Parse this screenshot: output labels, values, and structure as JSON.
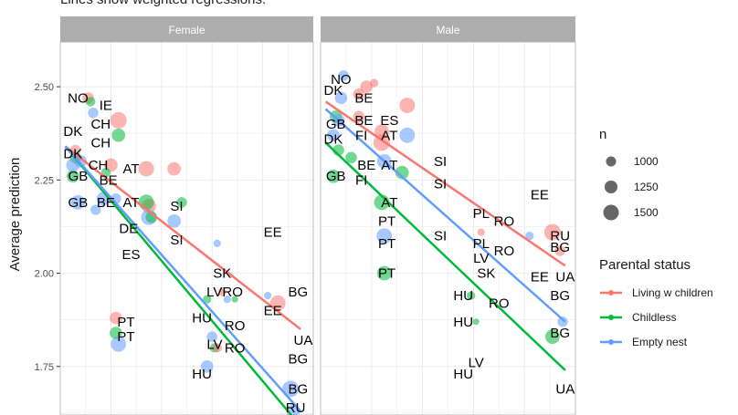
{
  "subtitle": "Lines show weighted regressions.",
  "ylabel": "Average prediction",
  "colors": {
    "Living w children": "#F8766D",
    "Childless": "#00BA38",
    "Empty nest": "#619CFF",
    "strip": "#adadad",
    "grid": "#ebebeb"
  },
  "legend": {
    "size_title": "n",
    "size_entries": [
      "1000",
      "1250",
      "1500"
    ],
    "color_title": "Parental status",
    "color_entries": [
      "Living w children",
      "Childless",
      "Empty nest"
    ]
  },
  "chart_data": {
    "type": "scatter",
    "ylim": [
      1.62,
      2.62
    ],
    "yticks": [
      1.75,
      2.0,
      2.25,
      2.5
    ],
    "ytick_labels": [
      "1.75",
      "2.00",
      "2.25",
      "2.50"
    ],
    "xlim": [
      0,
      10
    ],
    "grid": true,
    "facets": [
      {
        "name": "Female",
        "points": [
          {
            "x": 1.1,
            "y": 2.47,
            "g": 0,
            "s": 1100
          },
          {
            "x": 1.2,
            "y": 2.46,
            "g": 1,
            "s": 900
          },
          {
            "x": 1.3,
            "y": 2.43,
            "g": 2,
            "s": 1000
          },
          {
            "x": 2.3,
            "y": 2.41,
            "g": 0,
            "s": 1600
          },
          {
            "x": 2.3,
            "y": 2.37,
            "g": 1,
            "s": 1300
          },
          {
            "x": 0.6,
            "y": 2.33,
            "g": 0,
            "s": 1000
          },
          {
            "x": 0.6,
            "y": 2.31,
            "g": 1,
            "s": 1100
          },
          {
            "x": 0.8,
            "y": 2.3,
            "g": 2,
            "s": 1200
          },
          {
            "x": 2.0,
            "y": 2.29,
            "g": 0,
            "s": 1300
          },
          {
            "x": 1.8,
            "y": 2.27,
            "g": 1,
            "s": 900
          },
          {
            "x": 0.5,
            "y": 2.26,
            "g": 1,
            "s": 1200
          },
          {
            "x": 0.5,
            "y": 2.29,
            "g": 2,
            "s": 1300
          },
          {
            "x": 0.7,
            "y": 2.19,
            "g": 2,
            "s": 1400
          },
          {
            "x": 1.7,
            "y": 2.2,
            "g": 2,
            "s": 1300
          },
          {
            "x": 2.2,
            "y": 2.2,
            "g": 2,
            "s": 1000
          },
          {
            "x": 1.4,
            "y": 2.17,
            "g": 2,
            "s": 1000
          },
          {
            "x": 3.4,
            "y": 2.28,
            "g": 0,
            "s": 1500
          },
          {
            "x": 3.5,
            "y": 2.18,
            "g": 0,
            "s": 1400
          },
          {
            "x": 3.4,
            "y": 2.19,
            "g": 1,
            "s": 1500
          },
          {
            "x": 3.5,
            "y": 2.15,
            "g": 2,
            "s": 1500
          },
          {
            "x": 3.6,
            "y": 2.15,
            "g": 1,
            "s": 1100
          },
          {
            "x": 4.5,
            "y": 2.28,
            "g": 0,
            "s": 1300
          },
          {
            "x": 4.8,
            "y": 2.19,
            "g": 1,
            "s": 1000
          },
          {
            "x": 4.5,
            "y": 2.14,
            "g": 2,
            "s": 1300
          },
          {
            "x": 6.2,
            "y": 2.08,
            "g": 2,
            "s": 700
          },
          {
            "x": 8.2,
            "y": 1.94,
            "g": 2,
            "s": 700
          },
          {
            "x": 8.6,
            "y": 1.92,
            "g": 0,
            "s": 1500
          },
          {
            "x": 6.4,
            "y": 1.95,
            "g": 0,
            "s": 800
          },
          {
            "x": 6.6,
            "y": 1.93,
            "g": 2,
            "s": 700
          },
          {
            "x": 6.9,
            "y": 1.93,
            "g": 1,
            "s": 600
          },
          {
            "x": 5.8,
            "y": 1.93,
            "g": 1,
            "s": 800
          },
          {
            "x": 6.1,
            "y": 1.8,
            "g": 1,
            "s": 900
          },
          {
            "x": 6.0,
            "y": 1.83,
            "g": 2,
            "s": 1000
          },
          {
            "x": 5.8,
            "y": 1.75,
            "g": 2,
            "s": 1200
          },
          {
            "x": 6.2,
            "y": 1.8,
            "g": 0,
            "s": 900
          },
          {
            "x": 2.2,
            "y": 1.88,
            "g": 0,
            "s": 1200
          },
          {
            "x": 2.2,
            "y": 1.84,
            "g": 1,
            "s": 1200
          },
          {
            "x": 2.3,
            "y": 1.81,
            "g": 2,
            "s": 1500
          },
          {
            "x": 9.1,
            "y": 1.69,
            "g": 2,
            "s": 1600
          },
          {
            "x": 9.2,
            "y": 1.63,
            "g": 2,
            "s": 1300
          }
        ],
        "labels": [
          {
            "t": "NO",
            "x": 0.7,
            "y": 2.47
          },
          {
            "t": "IE",
            "x": 1.8,
            "y": 2.45
          },
          {
            "t": "CH",
            "x": 1.6,
            "y": 2.4
          },
          {
            "t": "DK",
            "x": 0.5,
            "y": 2.38
          },
          {
            "t": "CH",
            "x": 1.6,
            "y": 2.35
          },
          {
            "t": "DK",
            "x": 0.5,
            "y": 2.32
          },
          {
            "t": "CH",
            "x": 1.5,
            "y": 2.29
          },
          {
            "t": "BE",
            "x": 1.9,
            "y": 2.25
          },
          {
            "t": "AT",
            "x": 2.8,
            "y": 2.28
          },
          {
            "t": "GB",
            "x": 0.7,
            "y": 2.26
          },
          {
            "t": "GB",
            "x": 0.7,
            "y": 2.19
          },
          {
            "t": "BE",
            "x": 1.8,
            "y": 2.19
          },
          {
            "t": "AT",
            "x": 2.8,
            "y": 2.19
          },
          {
            "t": "SI",
            "x": 4.6,
            "y": 2.18
          },
          {
            "t": "DE",
            "x": 2.7,
            "y": 2.12
          },
          {
            "t": "SI",
            "x": 4.6,
            "y": 2.09
          },
          {
            "t": "EE",
            "x": 8.4,
            "y": 2.11
          },
          {
            "t": "ES",
            "x": 2.8,
            "y": 2.05
          },
          {
            "t": "SK",
            "x": 6.4,
            "y": 2.0
          },
          {
            "t": "LVRO",
            "x": 6.5,
            "y": 1.95
          },
          {
            "t": "BG",
            "x": 9.4,
            "y": 1.95
          },
          {
            "t": "EE",
            "x": 8.4,
            "y": 1.9
          },
          {
            "t": "PT",
            "x": 2.6,
            "y": 1.87
          },
          {
            "t": "HU",
            "x": 5.6,
            "y": 1.88
          },
          {
            "t": "RO",
            "x": 6.9,
            "y": 1.86
          },
          {
            "t": "PT",
            "x": 2.6,
            "y": 1.83
          },
          {
            "t": "UA",
            "x": 9.6,
            "y": 1.82
          },
          {
            "t": "LV",
            "x": 6.1,
            "y": 1.81
          },
          {
            "t": "RO",
            "x": 6.9,
            "y": 1.8
          },
          {
            "t": "BG",
            "x": 9.4,
            "y": 1.77
          },
          {
            "t": "HU",
            "x": 5.6,
            "y": 1.73
          },
          {
            "t": "BG",
            "x": 9.4,
            "y": 1.69
          },
          {
            "t": "RU",
            "x": 9.3,
            "y": 1.64
          }
        ],
        "lines": [
          {
            "g": 0,
            "x": [
              0.2,
              9.5
            ],
            "y": [
              2.34,
              1.85
            ]
          },
          {
            "g": 1,
            "x": [
              0.2,
              9.5
            ],
            "y": [
              2.34,
              1.59
            ]
          },
          {
            "g": 2,
            "x": [
              0.2,
              9.5
            ],
            "y": [
              2.34,
              1.63
            ]
          }
        ]
      },
      {
        "name": "Male",
        "points": [
          {
            "x": 0.9,
            "y": 2.53,
            "g": 2,
            "s": 1000
          },
          {
            "x": 1.5,
            "y": 2.48,
            "g": 0,
            "s": 1100
          },
          {
            "x": 1.8,
            "y": 2.5,
            "g": 0,
            "s": 1200
          },
          {
            "x": 2.1,
            "y": 2.51,
            "g": 0,
            "s": 800
          },
          {
            "x": 3.4,
            "y": 2.45,
            "g": 0,
            "s": 1500
          },
          {
            "x": 0.8,
            "y": 2.47,
            "g": 2,
            "s": 1200
          },
          {
            "x": 0.6,
            "y": 2.42,
            "g": 1,
            "s": 1200
          },
          {
            "x": 0.7,
            "y": 2.41,
            "g": 2,
            "s": 1200
          },
          {
            "x": 0.5,
            "y": 2.37,
            "g": 2,
            "s": 1200
          },
          {
            "x": 1.5,
            "y": 2.42,
            "g": 0,
            "s": 1100
          },
          {
            "x": 2.4,
            "y": 2.38,
            "g": 0,
            "s": 1400
          },
          {
            "x": 2.4,
            "y": 2.35,
            "g": 0,
            "s": 1600
          },
          {
            "x": 3.4,
            "y": 2.37,
            "g": 2,
            "s": 1500
          },
          {
            "x": 0.7,
            "y": 2.33,
            "g": 1,
            "s": 1100
          },
          {
            "x": 1.2,
            "y": 2.31,
            "g": 1,
            "s": 1100
          },
          {
            "x": 2.5,
            "y": 2.3,
            "g": 2,
            "s": 1400
          },
          {
            "x": 3.2,
            "y": 2.27,
            "g": 1,
            "s": 1300
          },
          {
            "x": 0.5,
            "y": 2.26,
            "g": 1,
            "s": 1300
          },
          {
            "x": 2.4,
            "y": 2.19,
            "g": 1,
            "s": 1500
          },
          {
            "x": 2.5,
            "y": 2.1,
            "g": 2,
            "s": 1500
          },
          {
            "x": 2.5,
            "y": 2.0,
            "g": 1,
            "s": 1400
          },
          {
            "x": 6.3,
            "y": 2.11,
            "g": 0,
            "s": 700
          },
          {
            "x": 8.2,
            "y": 2.1,
            "g": 2,
            "s": 800
          },
          {
            "x": 9.1,
            "y": 2.11,
            "g": 0,
            "s": 1600
          },
          {
            "x": 9.4,
            "y": 2.06,
            "g": 0,
            "s": 1000
          },
          {
            "x": 5.9,
            "y": 1.94,
            "g": 1,
            "s": 800
          },
          {
            "x": 6.1,
            "y": 1.87,
            "g": 1,
            "s": 600
          },
          {
            "x": 9.1,
            "y": 1.83,
            "g": 1,
            "s": 1400
          },
          {
            "x": 9.5,
            "y": 1.87,
            "g": 2,
            "s": 1000
          }
        ],
        "labels": [
          {
            "t": "NO",
            "x": 0.8,
            "y": 2.52
          },
          {
            "t": "DK",
            "x": 0.5,
            "y": 2.49
          },
          {
            "t": "BE",
            "x": 1.7,
            "y": 2.47
          },
          {
            "t": "GB",
            "x": 0.6,
            "y": 2.4
          },
          {
            "t": "BE",
            "x": 1.7,
            "y": 2.41
          },
          {
            "t": "ES",
            "x": 2.7,
            "y": 2.41
          },
          {
            "t": "FI",
            "x": 1.6,
            "y": 2.37
          },
          {
            "t": "AT",
            "x": 2.7,
            "y": 2.37
          },
          {
            "t": "DK",
            "x": 0.5,
            "y": 2.36
          },
          {
            "t": "SI",
            "x": 4.7,
            "y": 2.3
          },
          {
            "t": "BE",
            "x": 1.8,
            "y": 2.29
          },
          {
            "t": "AT",
            "x": 2.7,
            "y": 2.29
          },
          {
            "t": "GB",
            "x": 0.6,
            "y": 2.26
          },
          {
            "t": "FI",
            "x": 1.6,
            "y": 2.25
          },
          {
            "t": "SI",
            "x": 4.7,
            "y": 2.24
          },
          {
            "t": "EE",
            "x": 8.6,
            "y": 2.21
          },
          {
            "t": "AT",
            "x": 2.7,
            "y": 2.19
          },
          {
            "t": "PL",
            "x": 6.3,
            "y": 2.16
          },
          {
            "t": "RO",
            "x": 7.2,
            "y": 2.14
          },
          {
            "t": "PT",
            "x": 2.6,
            "y": 2.14
          },
          {
            "t": "SI",
            "x": 4.7,
            "y": 2.1
          },
          {
            "t": "RU",
            "x": 9.4,
            "y": 2.1
          },
          {
            "t": "PL",
            "x": 6.3,
            "y": 2.08
          },
          {
            "t": "PT",
            "x": 2.6,
            "y": 2.08
          },
          {
            "t": "BG",
            "x": 9.4,
            "y": 2.07
          },
          {
            "t": "RO",
            "x": 7.2,
            "y": 2.06
          },
          {
            "t": "LV",
            "x": 6.3,
            "y": 2.04
          },
          {
            "t": "SK",
            "x": 6.5,
            "y": 2.0
          },
          {
            "t": "PT",
            "x": 2.6,
            "y": 2.0
          },
          {
            "t": "EE",
            "x": 8.6,
            "y": 1.99
          },
          {
            "t": "UA",
            "x": 9.6,
            "y": 1.99
          },
          {
            "t": "HU",
            "x": 5.6,
            "y": 1.94
          },
          {
            "t": "BG",
            "x": 9.4,
            "y": 1.94
          },
          {
            "t": "RO",
            "x": 7.0,
            "y": 1.92
          },
          {
            "t": "HU",
            "x": 5.6,
            "y": 1.87
          },
          {
            "t": "BG",
            "x": 9.4,
            "y": 1.84
          },
          {
            "t": "LV",
            "x": 6.1,
            "y": 1.76
          },
          {
            "t": "HU",
            "x": 5.6,
            "y": 1.73
          },
          {
            "t": "UA",
            "x": 9.6,
            "y": 1.69
          }
        ],
        "lines": [
          {
            "g": 0,
            "x": [
              0.2,
              9.6
            ],
            "y": [
              2.46,
              2.02
            ]
          },
          {
            "g": 1,
            "x": [
              0.2,
              9.6
            ],
            "y": [
              2.35,
              1.74
            ]
          },
          {
            "g": 2,
            "x": [
              0.2,
              9.6
            ],
            "y": [
              2.44,
              1.87
            ]
          }
        ]
      }
    ]
  }
}
